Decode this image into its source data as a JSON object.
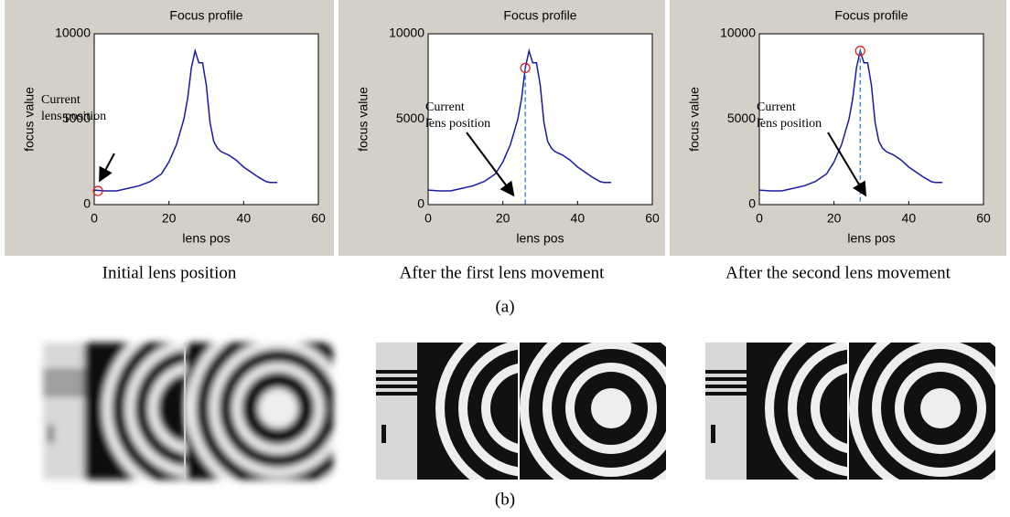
{
  "chart_data": [
    {
      "type": "line",
      "title": "Focus profile",
      "x_label": "lens pos",
      "y_label": "focus value",
      "x": [
        0,
        3,
        6,
        9,
        12,
        15,
        18,
        20,
        22,
        24,
        25,
        26,
        27,
        28,
        29,
        30,
        31,
        32,
        33,
        34,
        36,
        38,
        40,
        42,
        44,
        46,
        47,
        49
      ],
      "values": [
        850,
        800,
        800,
        950,
        1100,
        1350,
        1800,
        2500,
        3500,
        5000,
        6200,
        8000,
        9000,
        8300,
        8300,
        7000,
        4800,
        3700,
        3300,
        3100,
        2900,
        2600,
        2200,
        1900,
        1600,
        1350,
        1300,
        1300
      ],
      "color": "#1a1aa0",
      "xlim": [
        0,
        60
      ],
      "ylim": [
        0,
        10000
      ],
      "xticks": [
        0,
        20,
        40,
        60
      ],
      "yticks": [
        0,
        5000,
        10000
      ],
      "marker": {
        "x": 1,
        "y": 800,
        "color": "#e02020"
      },
      "dashed_line": false,
      "annotation": [
        "Current",
        "lens position"
      ]
    },
    {
      "type": "line",
      "title": "Focus profile",
      "x_label": "lens pos",
      "y_label": "focus value",
      "x": [
        0,
        3,
        6,
        9,
        12,
        15,
        18,
        20,
        22,
        24,
        25,
        26,
        27,
        28,
        29,
        30,
        31,
        32,
        33,
        34,
        36,
        38,
        40,
        42,
        44,
        46,
        47,
        49
      ],
      "values": [
        850,
        800,
        800,
        950,
        1100,
        1350,
        1800,
        2500,
        3500,
        5000,
        6200,
        8000,
        9000,
        8300,
        8300,
        7000,
        4800,
        3700,
        3300,
        3100,
        2900,
        2600,
        2200,
        1900,
        1600,
        1350,
        1300,
        1300
      ],
      "color": "#1a1aa0",
      "xlim": [
        0,
        60
      ],
      "ylim": [
        0,
        10000
      ],
      "xticks": [
        0,
        20,
        40,
        60
      ],
      "yticks": [
        0,
        5000,
        10000
      ],
      "marker": {
        "x": 26,
        "y": 8000,
        "color": "#e02020"
      },
      "dashed_line": true,
      "annotation": [
        "Current",
        "lens position"
      ]
    },
    {
      "type": "line",
      "title": "Focus profile",
      "x_label": "lens pos",
      "y_label": "focus value",
      "x": [
        0,
        3,
        6,
        9,
        12,
        15,
        18,
        20,
        22,
        24,
        25,
        26,
        27,
        28,
        29,
        30,
        31,
        32,
        33,
        34,
        36,
        38,
        40,
        42,
        44,
        46,
        47,
        49
      ],
      "values": [
        850,
        800,
        800,
        950,
        1100,
        1350,
        1800,
        2500,
        3500,
        5000,
        6200,
        8000,
        9000,
        8300,
        8300,
        7000,
        4800,
        3700,
        3300,
        3100,
        2900,
        2600,
        2200,
        1900,
        1600,
        1350,
        1300,
        1300
      ],
      "color": "#1a1aa0",
      "xlim": [
        0,
        60
      ],
      "ylim": [
        0,
        10000
      ],
      "xticks": [
        0,
        20,
        40,
        60
      ],
      "yticks": [
        0,
        5000,
        10000
      ],
      "marker": {
        "x": 27,
        "y": 9000,
        "color": "#e02020"
      },
      "dashed_line": true,
      "annotation": [
        "Current",
        "lens position"
      ]
    }
  ],
  "captions": [
    "Initial lens position",
    "After the first lens movement",
    "After the second lens movement"
  ],
  "labels": {
    "a": "(a)",
    "b": "(b)"
  }
}
